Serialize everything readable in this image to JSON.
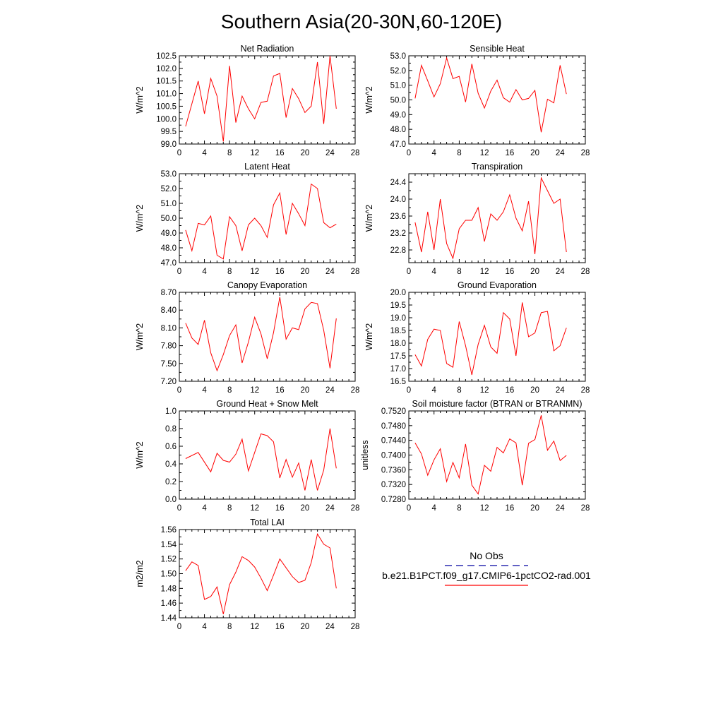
{
  "page_title": "Southern Asia(20-30N,60-120E)",
  "colors": {
    "model_line": "#ff0000",
    "obs_line": "#0000a0",
    "frame": "#000000"
  },
  "legend": {
    "obs_label": "No Obs",
    "model_label": "b.e21.B1PCT.f09_g17.CMIP6-1pctCO2-rad.001"
  },
  "chart_data": [
    {
      "type": "line",
      "title": "Net Radiation",
      "ylabel": "W/m^2",
      "xlim": [
        0,
        28
      ],
      "ylim": [
        99.0,
        102.5
      ],
      "xticks": [
        0,
        4,
        8,
        12,
        16,
        20,
        24,
        28
      ],
      "xtick_labels": [
        "0",
        "4",
        "8",
        "12",
        "16",
        "20",
        "24",
        "28"
      ],
      "yticks": [
        99.0,
        99.5,
        100.0,
        100.5,
        101.0,
        101.5,
        102.0,
        102.5
      ],
      "ytick_labels": [
        "99.0",
        "99.5",
        "100.0",
        "100.5",
        "101.0",
        "101.5",
        "102.0",
        "102.5"
      ],
      "x": [
        1,
        2,
        3,
        4,
        5,
        6,
        7,
        8,
        9,
        10,
        11,
        12,
        13,
        14,
        15,
        16,
        17,
        18,
        19,
        20,
        21,
        22,
        23,
        24,
        25
      ],
      "values": [
        99.7,
        100.6,
        101.5,
        100.2,
        101.6,
        100.9,
        99.1,
        102.1,
        99.85,
        100.9,
        100.4,
        100.0,
        100.65,
        100.7,
        101.7,
        101.8,
        100.05,
        101.2,
        100.8,
        100.25,
        100.5,
        102.25,
        99.8,
        102.5,
        100.4
      ]
    },
    {
      "type": "line",
      "title": "Sensible Heat",
      "ylabel": "W/m^2",
      "xlim": [
        0,
        28
      ],
      "ylim": [
        47.0,
        53.0
      ],
      "xticks": [
        0,
        4,
        8,
        12,
        16,
        20,
        24,
        28
      ],
      "xtick_labels": [
        "0",
        "4",
        "8",
        "12",
        "16",
        "20",
        "24",
        "28"
      ],
      "yticks": [
        47.0,
        48.0,
        49.0,
        50.0,
        51.0,
        52.0,
        53.0
      ],
      "ytick_labels": [
        "47.0",
        "48.0",
        "49.0",
        "50.0",
        "51.0",
        "52.0",
        "53.0"
      ],
      "x": [
        1,
        2,
        3,
        4,
        5,
        6,
        7,
        8,
        9,
        10,
        11,
        12,
        13,
        14,
        15,
        16,
        17,
        18,
        19,
        20,
        21,
        22,
        23,
        24,
        25
      ],
      "values": [
        50.1,
        52.35,
        51.3,
        50.2,
        51.1,
        52.85,
        51.45,
        51.6,
        49.85,
        52.45,
        50.45,
        49.45,
        50.6,
        51.35,
        50.15,
        49.85,
        50.7,
        50.0,
        50.1,
        50.65,
        47.8,
        50.05,
        49.8,
        52.35,
        50.4
      ]
    },
    {
      "type": "line",
      "title": "Latent Heat",
      "ylabel": "W/m^2",
      "xlim": [
        0,
        28
      ],
      "ylim": [
        47.0,
        53.0
      ],
      "xticks": [
        0,
        4,
        8,
        12,
        16,
        20,
        24,
        28
      ],
      "xtick_labels": [
        "0",
        "4",
        "8",
        "12",
        "16",
        "20",
        "24",
        "28"
      ],
      "yticks": [
        47.0,
        48.0,
        49.0,
        50.0,
        51.0,
        52.0,
        53.0
      ],
      "ytick_labels": [
        "47.0",
        "48.0",
        "49.0",
        "50.0",
        "51.0",
        "52.0",
        "53.0"
      ],
      "x": [
        1,
        2,
        3,
        4,
        5,
        6,
        7,
        8,
        9,
        10,
        11,
        12,
        13,
        14,
        15,
        16,
        17,
        18,
        19,
        20,
        21,
        22,
        23,
        24,
        25
      ],
      "values": [
        49.2,
        47.8,
        49.65,
        49.55,
        50.15,
        47.5,
        47.25,
        50.1,
        49.5,
        47.8,
        49.55,
        50.0,
        49.5,
        48.7,
        50.9,
        51.7,
        48.9,
        51.0,
        50.3,
        49.5,
        52.3,
        52.0,
        49.7,
        49.35,
        49.6
      ]
    },
    {
      "type": "line",
      "title": "Transpiration",
      "ylabel": "W/m^2",
      "xlim": [
        0,
        28
      ],
      "ylim": [
        22.5,
        24.6
      ],
      "xticks": [
        0,
        4,
        8,
        12,
        16,
        20,
        24,
        28
      ],
      "xtick_labels": [
        "0",
        "4",
        "8",
        "12",
        "16",
        "20",
        "24",
        "28"
      ],
      "yticks": [
        22.8,
        23.2,
        23.6,
        24.0,
        24.4
      ],
      "ytick_labels": [
        "22.8",
        "23.2",
        "23.6",
        "24.0",
        "24.4"
      ],
      "x": [
        1,
        2,
        3,
        4,
        5,
        6,
        7,
        8,
        9,
        10,
        11,
        12,
        13,
        14,
        15,
        16,
        17,
        18,
        19,
        20,
        21,
        22,
        23,
        24,
        25
      ],
      "values": [
        23.45,
        22.75,
        23.7,
        22.8,
        24.0,
        22.95,
        22.6,
        23.3,
        23.5,
        23.5,
        23.8,
        23.0,
        23.65,
        23.5,
        23.7,
        24.1,
        23.55,
        23.25,
        23.95,
        22.7,
        24.5,
        24.2,
        23.9,
        24.0,
        22.75
      ]
    },
    {
      "type": "line",
      "title": "Canopy Evaporation",
      "ylabel": "W/m^2",
      "xlim": [
        0,
        28
      ],
      "ylim": [
        7.2,
        8.7
      ],
      "xticks": [
        0,
        4,
        8,
        12,
        16,
        20,
        24,
        28
      ],
      "xtick_labels": [
        "0",
        "4",
        "8",
        "12",
        "16",
        "20",
        "24",
        "28"
      ],
      "yticks": [
        7.2,
        7.5,
        7.8,
        8.1,
        8.4,
        8.7
      ],
      "ytick_labels": [
        "7.20",
        "7.50",
        "7.80",
        "8.10",
        "8.40",
        "8.70"
      ],
      "x": [
        1,
        2,
        3,
        4,
        5,
        6,
        7,
        8,
        9,
        10,
        11,
        12,
        13,
        14,
        15,
        16,
        17,
        18,
        19,
        20,
        21,
        22,
        23,
        24,
        25
      ],
      "values": [
        8.18,
        7.93,
        7.82,
        8.23,
        7.68,
        7.38,
        7.65,
        7.97,
        8.15,
        7.51,
        7.86,
        8.28,
        8.0,
        7.58,
        8.02,
        8.62,
        7.91,
        8.1,
        8.07,
        8.42,
        8.53,
        8.51,
        8.06,
        7.42,
        8.26
      ]
    },
    {
      "type": "line",
      "title": "Ground Evaporation",
      "ylabel": "W/m^2",
      "xlim": [
        0,
        28
      ],
      "ylim": [
        16.5,
        20.0
      ],
      "xticks": [
        0,
        4,
        8,
        12,
        16,
        20,
        24,
        28
      ],
      "xtick_labels": [
        "0",
        "4",
        "8",
        "12",
        "16",
        "20",
        "24",
        "28"
      ],
      "yticks": [
        16.5,
        17.0,
        17.5,
        18.0,
        18.5,
        19.0,
        19.5,
        20.0
      ],
      "ytick_labels": [
        "16.5",
        "17.0",
        "17.5",
        "18.0",
        "18.5",
        "19.0",
        "19.5",
        "20.0"
      ],
      "x": [
        1,
        2,
        3,
        4,
        5,
        6,
        7,
        8,
        9,
        10,
        11,
        12,
        13,
        14,
        15,
        16,
        17,
        18,
        19,
        20,
        21,
        22,
        23,
        24,
        25
      ],
      "values": [
        17.55,
        17.1,
        18.15,
        18.55,
        18.5,
        17.2,
        17.05,
        18.85,
        17.9,
        16.75,
        17.95,
        18.7,
        17.85,
        17.6,
        19.2,
        18.95,
        17.5,
        19.6,
        18.25,
        18.4,
        19.2,
        19.25,
        17.7,
        17.9,
        18.6
      ]
    },
    {
      "type": "line",
      "title": "Ground Heat + Snow Melt",
      "ylabel": "W/m^2",
      "xlim": [
        0,
        28
      ],
      "ylim": [
        0.0,
        1.0
      ],
      "xticks": [
        0,
        4,
        8,
        12,
        16,
        20,
        24,
        28
      ],
      "xtick_labels": [
        "0",
        "4",
        "8",
        "12",
        "16",
        "20",
        "24",
        "28"
      ],
      "yticks": [
        0.0,
        0.2,
        0.4,
        0.6,
        0.8,
        1.0
      ],
      "ytick_labels": [
        "0.0",
        "0.2",
        "0.4",
        "0.6",
        "0.8",
        "1.0"
      ],
      "x": [
        1,
        3,
        5,
        6,
        7,
        8,
        9,
        10,
        11,
        12,
        13,
        14,
        15,
        16,
        17,
        18,
        19,
        20,
        21,
        22,
        23,
        24,
        25
      ],
      "values": [
        0.46,
        0.53,
        0.31,
        0.52,
        0.44,
        0.42,
        0.51,
        0.68,
        0.32,
        0.53,
        0.74,
        0.72,
        0.65,
        0.24,
        0.45,
        0.25,
        0.41,
        0.1,
        0.45,
        0.1,
        0.33,
        0.8,
        0.35
      ]
    },
    {
      "type": "line",
      "title": "Soil moisture factor (BTRAN or BTRANMN)",
      "ylabel": "unitless",
      "xlim": [
        0,
        28
      ],
      "ylim": [
        0.728,
        0.752
      ],
      "xticks": [
        0,
        4,
        8,
        12,
        16,
        20,
        24,
        28
      ],
      "xtick_labels": [
        "0",
        "4",
        "8",
        "12",
        "16",
        "20",
        "24",
        "28"
      ],
      "yticks": [
        0.728,
        0.732,
        0.736,
        0.74,
        0.744,
        0.748,
        0.752
      ],
      "ytick_labels": [
        "0.7280",
        "0.7320",
        "0.7360",
        "0.7400",
        "0.7440",
        "0.7480",
        "0.7520"
      ],
      "x": [
        1,
        2,
        3,
        4,
        5,
        6,
        7,
        8,
        9,
        10,
        11,
        12,
        13,
        14,
        15,
        16,
        17,
        18,
        19,
        20,
        21,
        22,
        23,
        24,
        25
      ],
      "values": [
        0.7433,
        0.7403,
        0.7345,
        0.7387,
        0.7417,
        0.7328,
        0.738,
        0.7338,
        0.743,
        0.7318,
        0.7294,
        0.7372,
        0.7356,
        0.7421,
        0.7406,
        0.7444,
        0.7433,
        0.7318,
        0.7432,
        0.7442,
        0.7508,
        0.7413,
        0.7438,
        0.7385,
        0.7399
      ]
    },
    {
      "type": "line",
      "title": "Total LAI",
      "ylabel": "m2/m2",
      "xlim": [
        0,
        28
      ],
      "ylim": [
        1.44,
        1.56
      ],
      "xticks": [
        0,
        4,
        8,
        12,
        16,
        20,
        24,
        28
      ],
      "xtick_labels": [
        "0",
        "4",
        "8",
        "12",
        "16",
        "20",
        "24",
        "28"
      ],
      "yticks": [
        1.44,
        1.46,
        1.48,
        1.5,
        1.52,
        1.54,
        1.56
      ],
      "ytick_labels": [
        "1.44",
        "1.46",
        "1.48",
        "1.50",
        "1.52",
        "1.54",
        "1.56"
      ],
      "x": [
        1,
        2,
        3,
        4,
        5,
        6,
        7,
        8,
        9,
        10,
        11,
        12,
        13,
        14,
        15,
        16,
        17,
        18,
        19,
        20,
        21,
        22,
        23,
        24,
        25
      ],
      "values": [
        1.504,
        1.516,
        1.511,
        1.465,
        1.469,
        1.482,
        1.445,
        1.485,
        1.502,
        1.523,
        1.518,
        1.509,
        1.494,
        1.477,
        1.498,
        1.52,
        1.508,
        1.496,
        1.488,
        1.491,
        1.515,
        1.554,
        1.54,
        1.535,
        1.48
      ]
    }
  ]
}
